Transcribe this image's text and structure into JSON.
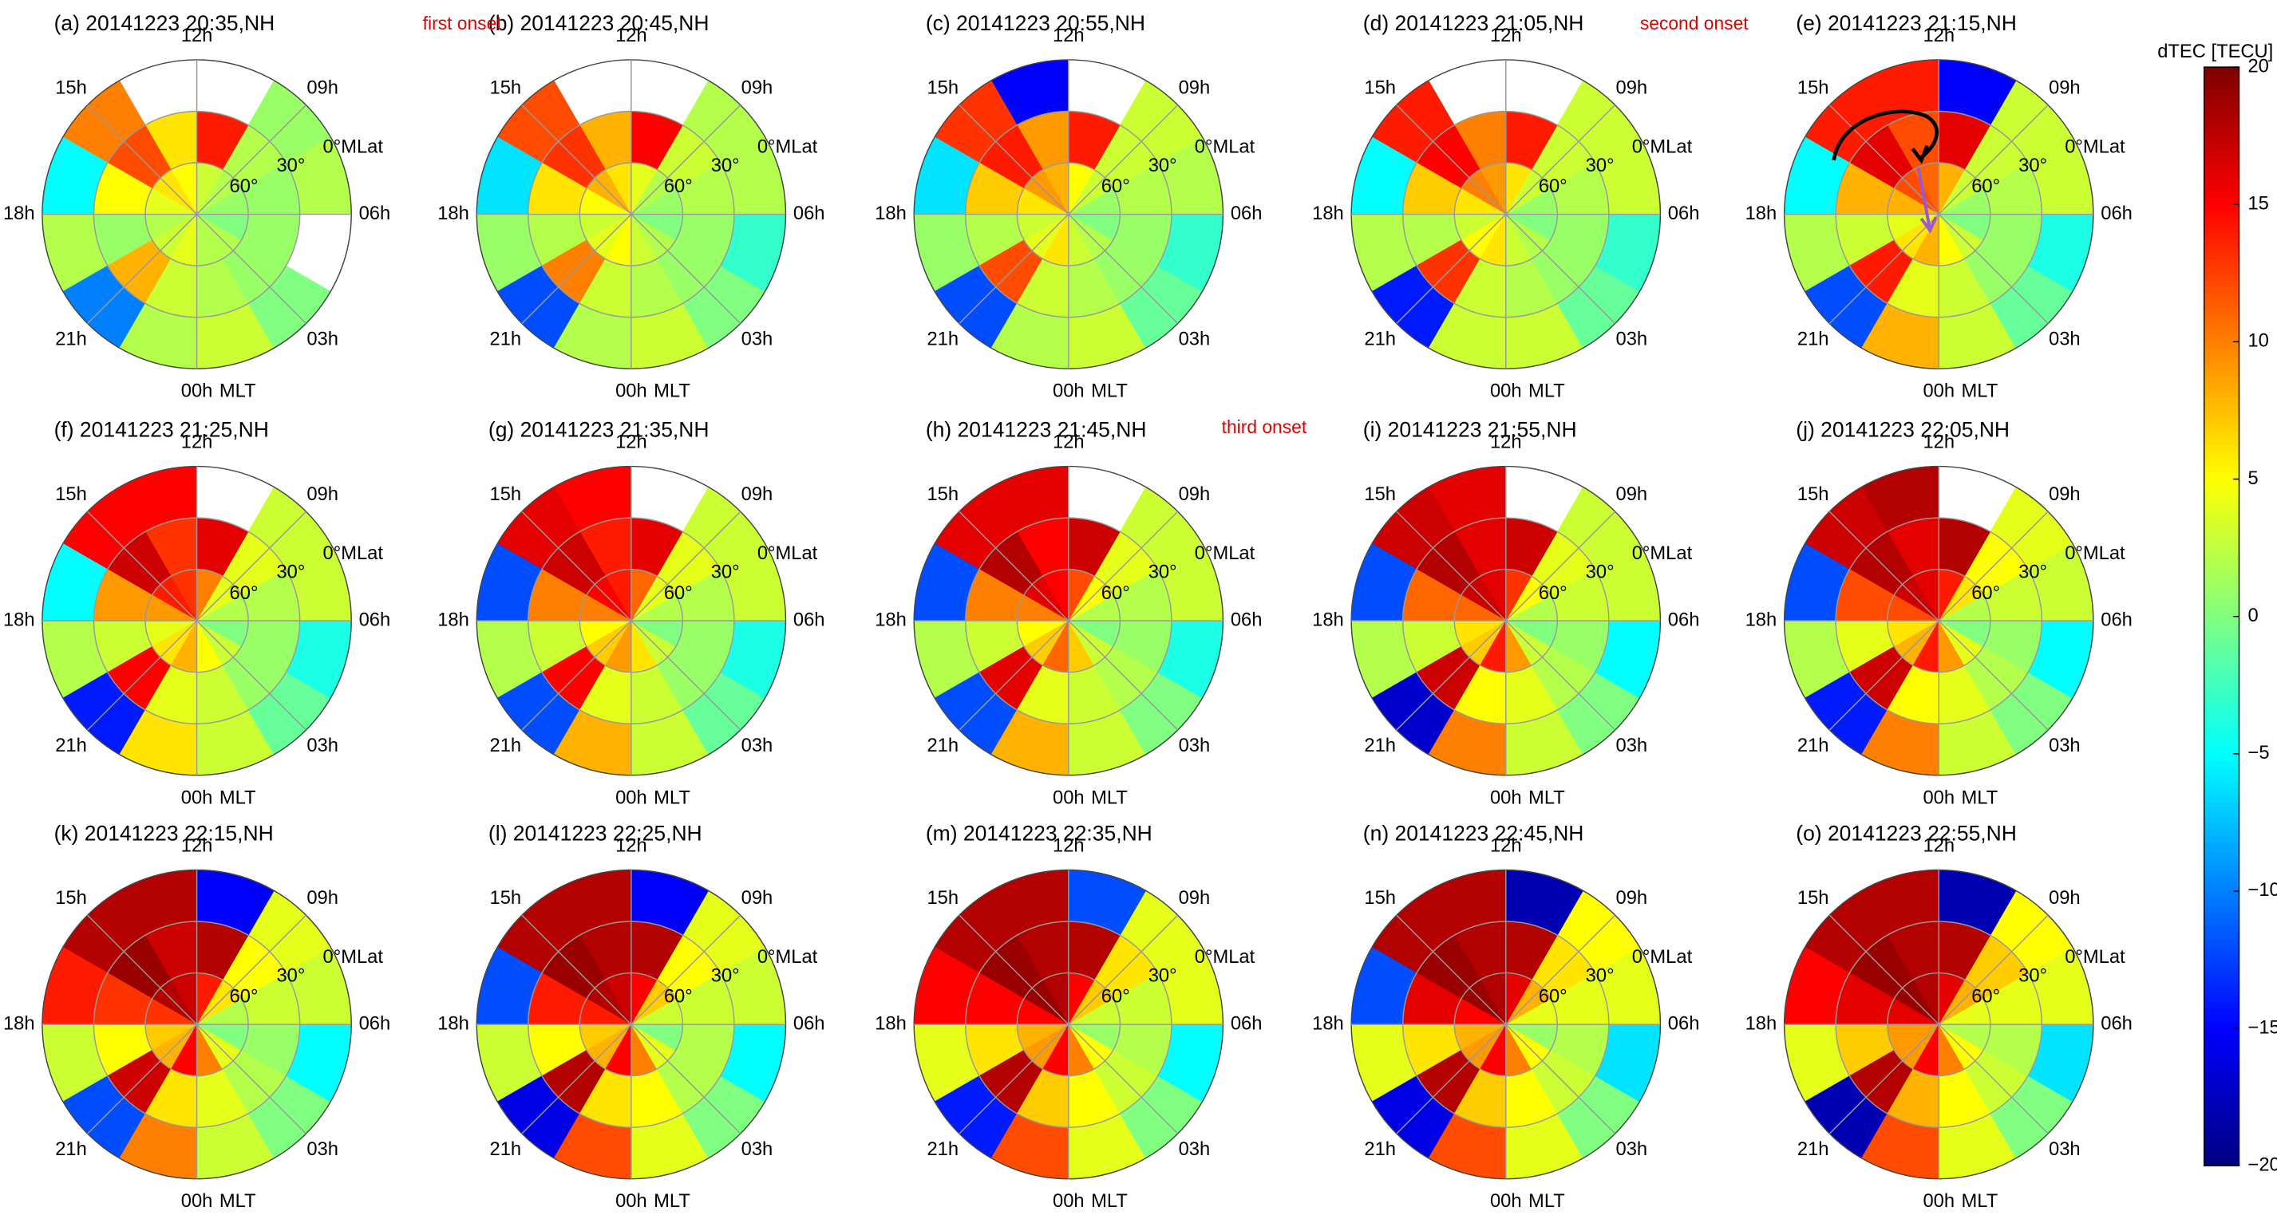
{
  "axes": {
    "rlim": [
      90,
      0
    ],
    "rticks": [
      {
        "value": 60,
        "label": "60°"
      },
      {
        "value": 30,
        "label": "30°"
      },
      {
        "value": 0,
        "label": "0°MLat"
      }
    ],
    "thetaticks": [
      {
        "value": 12,
        "label": "12h"
      },
      {
        "value": 15,
        "label": "15h"
      },
      {
        "value": 18,
        "label": "18h"
      },
      {
        "value": 21,
        "label": "21h"
      },
      {
        "value": 0,
        "label": "00h"
      },
      {
        "value": 3,
        "label": "03h"
      },
      {
        "value": 6,
        "label": "06h"
      },
      {
        "value": 9,
        "label": "09h"
      }
    ],
    "theta_title": "MLT"
  },
  "annotations": [
    "first onset",
    "second onset",
    "third onset"
  ],
  "colorbar": {
    "title": "dTEC [TECU]",
    "colormap": "jet",
    "clim": [
      -20,
      20
    ],
    "ticks": [
      20,
      15,
      10,
      5,
      0,
      {
        "value": -5,
        "label": "−5"
      },
      {
        "value": -10,
        "label": "−10"
      },
      {
        "value": -15,
        "label": "−15"
      },
      {
        "value": -20,
        "label": "−20"
      }
    ]
  },
  "chart_data": [
    {
      "type": "polar-heatmap",
      "title": "(a) 20141223 20:35,NH",
      "values": [
        [
          2,
          2,
          0,
          1,
          2,
          3,
          5,
          6,
          4,
          2,
          3,
          4
        ],
        [
          2,
          1,
          1,
          1,
          2,
          14,
          6,
          12,
          5,
          1,
          8,
          3
        ],
        [
          3,
          0,
          null,
          2,
          1,
          null,
          null,
          10,
          -5,
          2,
          -10,
          2
        ]
      ]
    },
    {
      "type": "polar-heatmap",
      "title": "(b) 20141223 20:45,NH",
      "values": [
        [
          3,
          2,
          0,
          1,
          2,
          4,
          6,
          8,
          5,
          3,
          4,
          5
        ],
        [
          2,
          1,
          1,
          2,
          3,
          15,
          8,
          13,
          6,
          2,
          10,
          3
        ],
        [
          3,
          0,
          -3,
          2,
          2,
          null,
          null,
          12,
          -6,
          1,
          -12,
          2
        ]
      ]
    },
    {
      "type": "polar-heatmap",
      "title": "(c) 20141223 20:55,NH",
      "values": [
        [
          3,
          2,
          0,
          1,
          3,
          5,
          8,
          9,
          6,
          3,
          4,
          6
        ],
        [
          2,
          1,
          1,
          2,
          3,
          14,
          9,
          14,
          7,
          2,
          12,
          3
        ],
        [
          3,
          -1,
          -3,
          2,
          3,
          null,
          -15,
          13,
          -6,
          1,
          -12,
          2
        ]
      ]
    },
    {
      "type": "polar-heatmap",
      "title": "(d) 20141223 21:05,NH",
      "values": [
        [
          3,
          2,
          0,
          1,
          3,
          6,
          9,
          10,
          6,
          3,
          5,
          6
        ],
        [
          2,
          1,
          1,
          2,
          3,
          14,
          10,
          15,
          7,
          2,
          13,
          3
        ],
        [
          3,
          -1,
          -3,
          3,
          3,
          null,
          null,
          14,
          -5,
          2,
          -14,
          3
        ]
      ]
    },
    {
      "type": "polar-heatmap",
      "title": "(e) 20141223 21:15,NH",
      "values": [
        [
          5,
          3,
          0,
          1,
          3,
          8,
          11,
          12,
          8,
          4,
          6,
          8
        ],
        [
          3,
          1,
          1,
          2,
          3,
          16,
          12,
          16,
          8,
          3,
          14,
          4
        ],
        [
          3,
          -1,
          -4,
          3,
          3,
          -15,
          14,
          14,
          -5,
          2,
          -12,
          8
        ]
      ]
    },
    {
      "type": "polar-heatmap",
      "title": "(f) 20141223 21:25,NH",
      "values": [
        [
          5,
          3,
          0,
          2,
          4,
          10,
          13,
          14,
          9,
          4,
          6,
          8
        ],
        [
          3,
          1,
          1,
          2,
          4,
          16,
          13,
          17,
          9,
          3,
          15,
          4
        ],
        [
          3,
          -1,
          -4,
          3,
          3,
          null,
          15,
          15,
          -5,
          2,
          -14,
          6
        ]
      ]
    },
    {
      "type": "polar-heatmap",
      "title": "(g) 20141223 21:35,NH",
      "values": [
        [
          6,
          3,
          0,
          2,
          4,
          11,
          14,
          15,
          10,
          5,
          7,
          9
        ],
        [
          3,
          1,
          1,
          2,
          4,
          16,
          14,
          17,
          10,
          3,
          15,
          4
        ],
        [
          3,
          -1,
          -4,
          3,
          3,
          null,
          15,
          16,
          -12,
          2,
          -12,
          8
        ]
      ]
    },
    {
      "type": "polar-heatmap",
      "title": "(h) 20141223 21:45,NH",
      "values": [
        [
          7,
          3,
          0,
          2,
          5,
          12,
          15,
          16,
          10,
          5,
          7,
          11
        ],
        [
          3,
          2,
          1,
          2,
          4,
          17,
          15,
          18,
          10,
          3,
          16,
          4
        ],
        [
          3,
          0,
          -4,
          3,
          3,
          null,
          16,
          16,
          -12,
          2,
          -12,
          8
        ]
      ]
    },
    {
      "type": "polar-heatmap",
      "title": "(i) 20141223 21:55,NH",
      "values": [
        [
          9,
          3,
          0,
          2,
          5,
          13,
          16,
          17,
          11,
          6,
          7,
          14
        ],
        [
          4,
          2,
          1,
          3,
          4,
          17,
          16,
          18,
          11,
          3,
          17,
          5
        ],
        [
          3,
          0,
          -5,
          3,
          3,
          null,
          16,
          17,
          -12,
          2,
          -17,
          10
        ]
      ]
    },
    {
      "type": "polar-heatmap",
      "title": "(j) 20141223 22:05,NH",
      "values": [
        [
          9,
          4,
          0,
          2,
          6,
          14,
          16,
          17,
          12,
          6,
          8,
          14
        ],
        [
          4,
          2,
          1,
          3,
          5,
          18,
          16,
          18,
          12,
          4,
          17,
          5
        ],
        [
          3,
          0,
          -5,
          3,
          4,
          null,
          18,
          17,
          -12,
          2,
          -14,
          10
        ]
      ]
    },
    {
      "type": "polar-heatmap",
      "title": "(k) 20141223 22:15,NH",
      "values": [
        [
          10,
          4,
          0,
          2,
          6,
          14,
          17,
          18,
          13,
          7,
          8,
          15
        ],
        [
          4,
          2,
          1,
          3,
          5,
          18,
          17,
          19,
          13,
          5,
          17,
          6
        ],
        [
          3,
          0,
          -5,
          3,
          4,
          -15,
          18,
          18,
          14,
          3,
          -12,
          10
        ]
      ]
    },
    {
      "type": "polar-heatmap",
      "title": "(l) 20141223 22:25,NH",
      "values": [
        [
          10,
          4,
          0,
          3,
          7,
          15,
          17,
          18,
          14,
          7,
          8,
          15
        ],
        [
          5,
          2,
          2,
          3,
          5,
          18,
          18,
          19,
          14,
          5,
          18,
          6
        ],
        [
          4,
          0,
          -5,
          3,
          4,
          -15,
          18,
          18,
          -12,
          3,
          -16,
          12
        ]
      ]
    },
    {
      "type": "polar-heatmap",
      "title": "(m) 20141223 22:35,NH",
      "values": [
        [
          10,
          5,
          1,
          3,
          7,
          15,
          18,
          19,
          15,
          8,
          9,
          15
        ],
        [
          5,
          3,
          2,
          3,
          6,
          18,
          18,
          19,
          15,
          6,
          18,
          7
        ],
        [
          4,
          0,
          -5,
          4,
          4,
          -12,
          18,
          18,
          15,
          4,
          -14,
          12
        ]
      ]
    },
    {
      "type": "polar-heatmap",
      "title": "(n) 20141223 22:45,NH",
      "values": [
        [
          10,
          5,
          1,
          4,
          8,
          16,
          18,
          19,
          15,
          8,
          9,
          15
        ],
        [
          5,
          3,
          2,
          4,
          6,
          18,
          18,
          19,
          16,
          6,
          18,
          7
        ],
        [
          4,
          0,
          -6,
          4,
          5,
          -18,
          18,
          18,
          -12,
          4,
          -16,
          12
        ]
      ]
    },
    {
      "type": "polar-heatmap",
      "title": "(o) 20141223 22:55,NH",
      "values": [
        [
          10,
          5,
          2,
          4,
          8,
          16,
          18,
          19,
          16,
          9,
          9,
          15
        ],
        [
          5,
          3,
          2,
          4,
          7,
          18,
          18,
          19,
          16,
          7,
          18,
          8
        ],
        [
          4,
          0,
          -6,
          4,
          5,
          -18,
          18,
          18,
          15,
          4,
          -18,
          12
        ]
      ]
    }
  ]
}
